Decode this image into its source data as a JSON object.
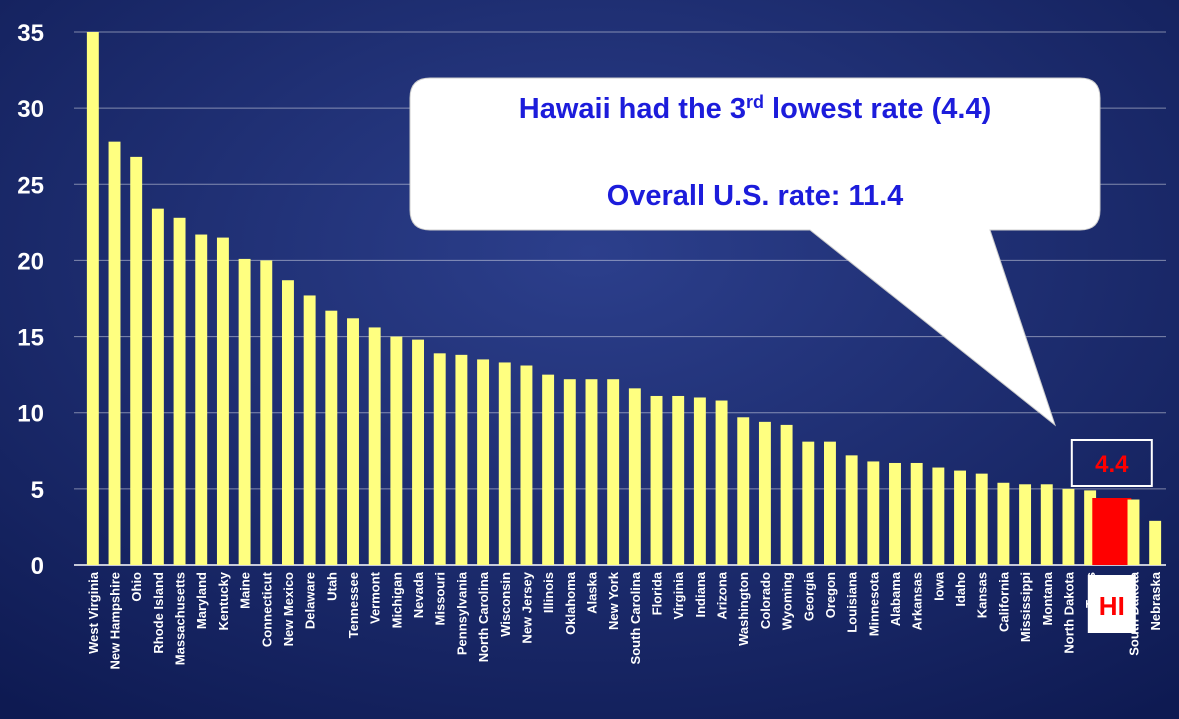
{
  "chart_data": {
    "type": "bar",
    "categories": [
      "West Virginia",
      "New Hampshire",
      "Ohio",
      "Rhode Island",
      "Massachusetts",
      "Maryland",
      "Kentucky",
      "Maine",
      "Connecticut",
      "New Mexico",
      "Delaware",
      "Utah",
      "Tennessee",
      "Vermont",
      "Michigan",
      "Nevada",
      "Missouri",
      "Pennsylvania",
      "North Carolina",
      "Wisconsin",
      "New Jersey",
      "Illinois",
      "Oklahoma",
      "Alaska",
      "New York",
      "South Carolina",
      "Florida",
      "Virginia",
      "Indiana",
      "Arizona",
      "Washington",
      "Colorado",
      "Wyoming",
      "Georgia",
      "Oregon",
      "Louisiana",
      "Minnesota",
      "Alabama",
      "Arkansas",
      "Iowa",
      "Idaho",
      "Kansas",
      "California",
      "Mississippi",
      "Montana",
      "North Dakota",
      "Texas",
      "HI",
      "South Dakota",
      "Nebraska"
    ],
    "values": [
      35,
      27.8,
      26.8,
      23.4,
      22.8,
      21.7,
      21.5,
      20.1,
      20.0,
      18.7,
      17.7,
      16.7,
      16.2,
      15.6,
      15.0,
      14.8,
      13.9,
      13.8,
      13.5,
      13.3,
      13.1,
      12.5,
      12.2,
      12.2,
      12.2,
      11.6,
      11.1,
      11.1,
      11.0,
      10.8,
      9.7,
      9.4,
      9.2,
      8.1,
      8.1,
      7.2,
      6.8,
      6.7,
      6.7,
      6.4,
      6.2,
      6.0,
      5.4,
      5.3,
      5.3,
      5.0,
      4.9,
      4.4,
      4.3,
      2.9
    ],
    "color": "#ffff80",
    "highlight": {
      "category": "HI",
      "color": "#ff0000",
      "value_label": "4.4"
    },
    "ylim": [
      0,
      35
    ],
    "yticks": [
      0,
      5,
      10,
      15,
      20,
      25,
      30,
      35
    ],
    "grid": true,
    "annotations": [
      [
        "Hawaii had the 3",
        "rd",
        " lowest rate (4.4)"
      ],
      [
        "Overall U.S. rate: 11.4"
      ]
    ]
  }
}
